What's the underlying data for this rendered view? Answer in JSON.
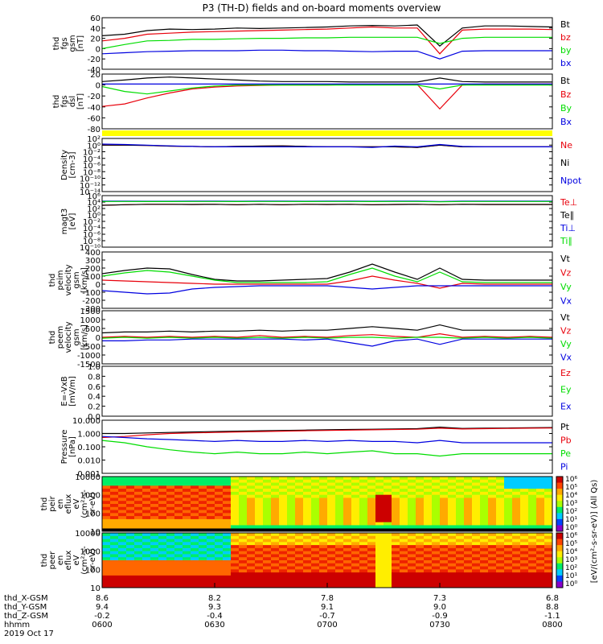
{
  "title": "P3 (TH-D) fields and on-board moments overview",
  "colors": {
    "black": "#000000",
    "red": "#e8000b",
    "green": "#00dd00",
    "blue": "#0000e0",
    "yellow": "#ffff00"
  },
  "chart_data": {
    "type": "line",
    "x_ticks": [
      "0600",
      "0630",
      "0700",
      "0730",
      "0800"
    ],
    "orbit_rows": [
      {
        "label": "thd_X-GSM",
        "values": [
          "8.6",
          "8.2",
          "7.8",
          "7.3",
          "6.8"
        ]
      },
      {
        "label": "thd_Y-GSM",
        "values": [
          "9.4",
          "9.3",
          "9.1",
          "9.0",
          "8.8"
        ]
      },
      {
        "label": "thd_Z-GSM",
        "values": [
          "-0.2",
          "-0.4",
          "-0.7",
          "-0.9",
          "-1.1"
        ]
      },
      {
        "label": "hhmm",
        "values": [
          "0600",
          "0630",
          "0700",
          "0730",
          "0800"
        ]
      }
    ],
    "date_label": "2019 Oct 17",
    "panels": [
      {
        "id": "fgs-gsm",
        "ylabel": [
          "thd",
          "fgs",
          "gsm",
          "[nT]"
        ],
        "yrange": [
          -40,
          60
        ],
        "ticks": [
          "60",
          "40",
          "20",
          "0",
          "-20",
          "-40"
        ],
        "series": [
          {
            "name": "Bt",
            "color": "black",
            "values": [
              25,
              28,
              35,
              38,
              37,
              38,
              40,
              39,
              40,
              41,
              42,
              44,
              45,
              44,
              46,
              5,
              40,
              44,
              44,
              43,
              42
            ]
          },
          {
            "name": "bz",
            "color": "red",
            "values": [
              15,
              20,
              28,
              30,
              32,
              33,
              34,
              35,
              36,
              37,
              38,
              40,
              42,
              40,
              40,
              -10,
              36,
              38,
              38,
              38,
              37
            ]
          },
          {
            "name": "by",
            "color": "green",
            "values": [
              0,
              8,
              15,
              16,
              18,
              18,
              19,
              20,
              20,
              21,
              21,
              22,
              22,
              22,
              22,
              10,
              20,
              22,
              22,
              22,
              22
            ]
          },
          {
            "name": "bx",
            "color": "blue",
            "values": [
              -10,
              -8,
              -6,
              -5,
              -4,
              -4,
              -4,
              -3,
              -3,
              -4,
              -4,
              -5,
              -6,
              -5,
              -5,
              -20,
              -5,
              -4,
              -4,
              -4,
              -4
            ]
          }
        ]
      },
      {
        "id": "fgs-dsl",
        "ylabel": [
          "thd",
          "fgs",
          "dsl",
          "[nT]"
        ],
        "yrange": [
          -90,
          20
        ],
        "ticks": [
          "20",
          "0",
          "-20",
          "-40",
          "-60",
          "-80"
        ],
        "series": [
          {
            "name": "Bt",
            "color": "black",
            "values": [
              5,
              8,
              12,
              14,
              12,
              10,
              8,
              6,
              5,
              5,
              5,
              4,
              4,
              4,
              4,
              12,
              5,
              4,
              4,
              4,
              4
            ]
          },
          {
            "name": "Bz",
            "color": "red",
            "values": [
              -45,
              -40,
              -28,
              -18,
              -10,
              -6,
              -4,
              -3,
              -2,
              -2,
              -2,
              -1,
              -1,
              -1,
              -1,
              -50,
              -2,
              0,
              0,
              0,
              0
            ]
          },
          {
            "name": "By",
            "color": "green",
            "values": [
              -5,
              -15,
              -20,
              -14,
              -8,
              -4,
              -2,
              -2,
              -2,
              -2,
              -2,
              -2,
              -2,
              -2,
              -2,
              -10,
              -2,
              -2,
              -2,
              -2,
              -2
            ]
          },
          {
            "name": "Bx",
            "color": "blue",
            "values": [
              0,
              0,
              0,
              0,
              0,
              0,
              0,
              0,
              0,
              0,
              0,
              0,
              0,
              0,
              0,
              0,
              0,
              0,
              0,
              0,
              0
            ]
          }
        ]
      },
      {
        "id": "density",
        "ylabel": [
          "Density",
          "[cm-3]"
        ],
        "log": true,
        "ylim_exp": [
          -14,
          2
        ],
        "ticks": [
          "10²",
          "10⁰",
          "10⁻²",
          "10⁻⁴",
          "10⁻⁶",
          "10⁻⁸",
          "10⁻¹⁰",
          "10⁻¹²",
          "10⁻¹⁴"
        ],
        "series": [
          {
            "name": "Ne",
            "color": "red",
            "values": [
              1,
              1,
              0.8,
              0.5,
              0.4,
              0.3,
              0.4,
              0.5,
              0.6,
              0.4,
              0.3,
              0.3,
              0.3,
              0.3,
              0.2,
              1,
              0.3,
              0.3,
              0.3,
              0.3,
              0.3
            ]
          },
          {
            "name": "Ni",
            "color": "black",
            "values": [
              1,
              1,
              0.8,
              0.5,
              0.4,
              0.3,
              0.4,
              0.5,
              0.6,
              0.4,
              0.3,
              0.3,
              0.3,
              0.3,
              0.2,
              1,
              0.3,
              0.3,
              0.3,
              0.3,
              0.3
            ]
          },
          {
            "name": "Npot",
            "color": "blue",
            "values": [
              2,
              1.5,
              1,
              0.6,
              0.4,
              0.3,
              0.3,
              0.3,
              0.3,
              0.3,
              0.3,
              0.3,
              0.2,
              0.5,
              0.3,
              1.5,
              0.4,
              0.3,
              0.3,
              0.3,
              0.3
            ]
          }
        ]
      },
      {
        "id": "temperature",
        "ylabel": [
          "magt3",
          "[eV]"
        ],
        "log": true,
        "ylim_exp": [
          -10,
          6
        ],
        "ticks": [
          "10⁶",
          "10⁴",
          "10²",
          "10⁰",
          "10⁻²",
          "10⁻⁴",
          "10⁻⁶",
          "10⁻⁸",
          "10⁻¹⁰"
        ],
        "series": [
          {
            "name": "Te⊥",
            "color": "red",
            "values": [
              1000,
              1500,
              2000,
              2000,
              1800,
              2000,
              1500,
              2000,
              1500,
              2000,
              1800,
              2000,
              1500,
              1800,
              2000,
              1500,
              2000,
              1800,
              1800,
              1800,
              1800
            ]
          },
          {
            "name": "Te∥",
            "color": "black",
            "values": [
              1000,
              1500,
              2000,
              2000,
              1800,
              2000,
              1500,
              2000,
              1500,
              2000,
              1800,
              2000,
              1500,
              1800,
              2000,
              1500,
              2000,
              1800,
              1800,
              1800,
              1800
            ]
          },
          {
            "name": "Ti⊥",
            "color": "blue",
            "values": [
              20000,
              20000,
              18000,
              18000,
              20000,
              20000,
              18000,
              20000,
              20000,
              18000,
              20000,
              20000,
              18000,
              20000,
              20000,
              15000,
              20000,
              20000,
              20000,
              20000,
              20000
            ]
          },
          {
            "name": "Ti∥",
            "color": "green",
            "values": [
              15000,
              15000,
              14000,
              14000,
              15000,
              15000,
              14000,
              15000,
              15000,
              14000,
              15000,
              15000,
              14000,
              15000,
              15000,
              12000,
              15000,
              15000,
              15000,
              15000,
              15000
            ]
          }
        ]
      },
      {
        "id": "peim-velocity",
        "ylabel": [
          "thd",
          "peim",
          "velocity",
          "gsm",
          "[km/s]"
        ],
        "yrange": [
          -300,
          400
        ],
        "ticks": [
          "400",
          "300",
          "200",
          "100",
          "0",
          "-100",
          "-200",
          "-300"
        ],
        "series": [
          {
            "name": "Vt",
            "color": "black",
            "values": [
              130,
              170,
              200,
              190,
              120,
              60,
              40,
              40,
              50,
              60,
              70,
              150,
              250,
              150,
              60,
              200,
              60,
              50,
              50,
              50,
              50
            ]
          },
          {
            "name": "Vz",
            "color": "red",
            "values": [
              50,
              40,
              30,
              20,
              10,
              0,
              0,
              0,
              0,
              0,
              0,
              40,
              100,
              50,
              10,
              -50,
              10,
              0,
              0,
              0,
              0
            ]
          },
          {
            "name": "Vy",
            "color": "green",
            "values": [
              100,
              140,
              170,
              150,
              100,
              50,
              20,
              20,
              20,
              20,
              30,
              120,
              200,
              100,
              30,
              150,
              30,
              20,
              20,
              20,
              20
            ]
          },
          {
            "name": "Vx",
            "color": "blue",
            "values": [
              -80,
              -100,
              -120,
              -110,
              -60,
              -40,
              -30,
              -20,
              -20,
              -20,
              -20,
              -40,
              -60,
              -40,
              -20,
              -20,
              -20,
              -20,
              -20,
              -20,
              -20
            ]
          }
        ]
      },
      {
        "id": "peem-velocity",
        "ylabel": [
          "thd",
          "peem",
          "velocity",
          "gsm",
          "[km/s]"
        ],
        "yrange": [
          -1500,
          1500
        ],
        "ticks": [
          "1500",
          "1000",
          "500",
          "0",
          "-500",
          "-1000",
          "-1500"
        ],
        "series": [
          {
            "name": "Vt",
            "color": "black",
            "values": [
              250,
              300,
              300,
              350,
              300,
              350,
              350,
              400,
              350,
              400,
              400,
              500,
              600,
              500,
              400,
              700,
              400,
              400,
              400,
              400,
              400
            ]
          },
          {
            "name": "Vz",
            "color": "red",
            "values": [
              0,
              50,
              0,
              50,
              0,
              50,
              0,
              100,
              0,
              50,
              0,
              100,
              150,
              50,
              0,
              200,
              0,
              50,
              0,
              50,
              0
            ]
          },
          {
            "name": "Vy",
            "color": "green",
            "values": [
              -50,
              0,
              -50,
              0,
              -50,
              0,
              -50,
              0,
              -50,
              0,
              -50,
              0,
              0,
              -50,
              0,
              0,
              -50,
              0,
              -50,
              0,
              -50
            ]
          },
          {
            "name": "Vx",
            "color": "blue",
            "values": [
              -200,
              -200,
              -150,
              -150,
              -100,
              -100,
              -100,
              -100,
              -100,
              -150,
              -100,
              -300,
              -500,
              -200,
              -100,
              -400,
              -100,
              -100,
              -100,
              -100,
              -100
            ]
          }
        ]
      },
      {
        "id": "efield",
        "ylabel": [
          "E=-VxB",
          "[mV/m]"
        ],
        "yrange": [
          0,
          1
        ],
        "ticks": [
          "1.0",
          "0.8",
          "0.6",
          "0.4",
          "0.2",
          "0.0"
        ],
        "series": [
          {
            "name": "Ez",
            "color": "red",
            "values": []
          },
          {
            "name": "Ey",
            "color": "green",
            "values": []
          },
          {
            "name": "Ex",
            "color": "blue",
            "values": []
          }
        ]
      },
      {
        "id": "pressure",
        "ylabel": [
          "Pressure",
          "[nPa]"
        ],
        "log": true,
        "ylim_exp": [
          -3,
          1
        ],
        "ticks": [
          "10.000",
          "1.000",
          "0.100",
          "0.010",
          "0.001"
        ],
        "series": [
          {
            "name": "Pt",
            "color": "black",
            "values": [
              1.0,
              1.0,
              1.1,
              1.2,
              1.3,
              1.4,
              1.5,
              1.6,
              1.7,
              1.8,
              1.9,
              2.0,
              2.1,
              2.2,
              2.3,
              3.0,
              2.4,
              2.5,
              2.6,
              2.7,
              2.8
            ]
          },
          {
            "name": "Pb",
            "color": "red",
            "values": [
              0.5,
              0.6,
              0.8,
              1.0,
              1.1,
              1.2,
              1.3,
              1.4,
              1.5,
              1.6,
              1.7,
              1.8,
              1.9,
              2.0,
              2.1,
              2.5,
              2.2,
              2.3,
              2.4,
              2.5,
              2.6
            ]
          },
          {
            "name": "Pe",
            "color": "green",
            "values": [
              0.3,
              0.2,
              0.1,
              0.06,
              0.04,
              0.03,
              0.04,
              0.03,
              0.03,
              0.04,
              0.03,
              0.04,
              0.05,
              0.03,
              0.03,
              0.02,
              0.03,
              0.03,
              0.03,
              0.03,
              0.03
            ]
          },
          {
            "name": "Pi",
            "color": "blue",
            "values": [
              0.6,
              0.5,
              0.4,
              0.35,
              0.3,
              0.25,
              0.3,
              0.25,
              0.25,
              0.3,
              0.25,
              0.3,
              0.25,
              0.25,
              0.2,
              0.3,
              0.2,
              0.2,
              0.2,
              0.2,
              0.2
            ]
          }
        ]
      },
      {
        "id": "peir-spectrogram",
        "ylabel": [
          "thd",
          "peir",
          "en",
          "eflux",
          "eV",
          "(cm²-s-",
          "sr-eV)"
        ],
        "type": "heatmap",
        "ticks": [
          "10000",
          "1000",
          "100",
          "10"
        ]
      },
      {
        "id": "peer-spectrogram",
        "ylabel": [
          "thd",
          "peer",
          "en",
          "eflux",
          "eV",
          "(cm²-s-",
          "sr-eV)"
        ],
        "type": "heatmap",
        "ticks": [
          "10000",
          "1000",
          "100",
          "10"
        ]
      }
    ],
    "colorbar": {
      "label": "[eV/(cm²-s-sr-eV)] (All Qs)",
      "ticks_upper": [
        "10⁶",
        "10⁵",
        "10⁴",
        "10³",
        "10²",
        "10¹",
        "10⁰"
      ],
      "ticks_lower": [
        "10⁶",
        "10⁵",
        "10⁴",
        "10³",
        "10²",
        "10¹",
        "10⁰"
      ]
    }
  }
}
